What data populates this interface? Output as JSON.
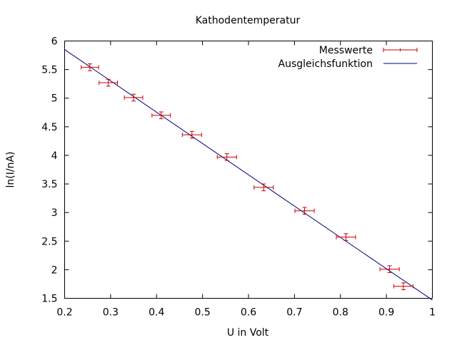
{
  "chart_data": {
    "type": "scatter",
    "title": "Kathodentemperatur",
    "xlabel": "U in Volt",
    "ylabel": "ln(I/nA)",
    "xlim": [
      0.2,
      1.0
    ],
    "ylim": [
      1.5,
      6.0
    ],
    "x_ticks": [
      0.2,
      0.3,
      0.4,
      0.5,
      0.6,
      0.7,
      0.8,
      0.9,
      1.0
    ],
    "x_tick_labels": [
      "0.2",
      "0.3",
      "0.4",
      "0.5",
      "0.6",
      "0.7",
      "0.8",
      "0.9",
      "1"
    ],
    "y_ticks": [
      1.5,
      2.0,
      2.5,
      3.0,
      3.5,
      4.0,
      4.5,
      5.0,
      5.5,
      6.0
    ],
    "y_tick_labels": [
      "1.5",
      "2",
      "2.5",
      "3",
      "3.5",
      "4",
      "4.5",
      "5",
      "5.5",
      "6"
    ],
    "grid": false,
    "legend_position": "top-right",
    "series": [
      {
        "name": "Messwerte",
        "kind": "points_with_errorbars",
        "color": "#cc0000",
        "points": [
          {
            "x": 0.255,
            "y": 5.54,
            "xerr": 0.019,
            "yerr": 0.06
          },
          {
            "x": 0.295,
            "y": 5.27,
            "xerr": 0.02,
            "yerr": 0.06
          },
          {
            "x": 0.35,
            "y": 5.01,
            "xerr": 0.02,
            "yerr": 0.06
          },
          {
            "x": 0.41,
            "y": 4.7,
            "xerr": 0.02,
            "yerr": 0.06
          },
          {
            "x": 0.477,
            "y": 4.36,
            "xerr": 0.021,
            "yerr": 0.06
          },
          {
            "x": 0.553,
            "y": 3.97,
            "xerr": 0.021,
            "yerr": 0.06
          },
          {
            "x": 0.633,
            "y": 3.44,
            "xerr": 0.021,
            "yerr": 0.06
          },
          {
            "x": 0.722,
            "y": 3.03,
            "xerr": 0.021,
            "yerr": 0.06
          },
          {
            "x": 0.812,
            "y": 2.57,
            "xerr": 0.021,
            "yerr": 0.06
          },
          {
            "x": 0.907,
            "y": 2.01,
            "xerr": 0.021,
            "yerr": 0.06
          },
          {
            "x": 0.937,
            "y": 1.71,
            "xerr": 0.021,
            "yerr": 0.06
          }
        ]
      },
      {
        "name": "Ausgleichsfunktion",
        "kind": "line",
        "color": "#000080",
        "x": [
          0.2,
          1.0
        ],
        "y": [
          5.85,
          1.47
        ]
      }
    ]
  }
}
